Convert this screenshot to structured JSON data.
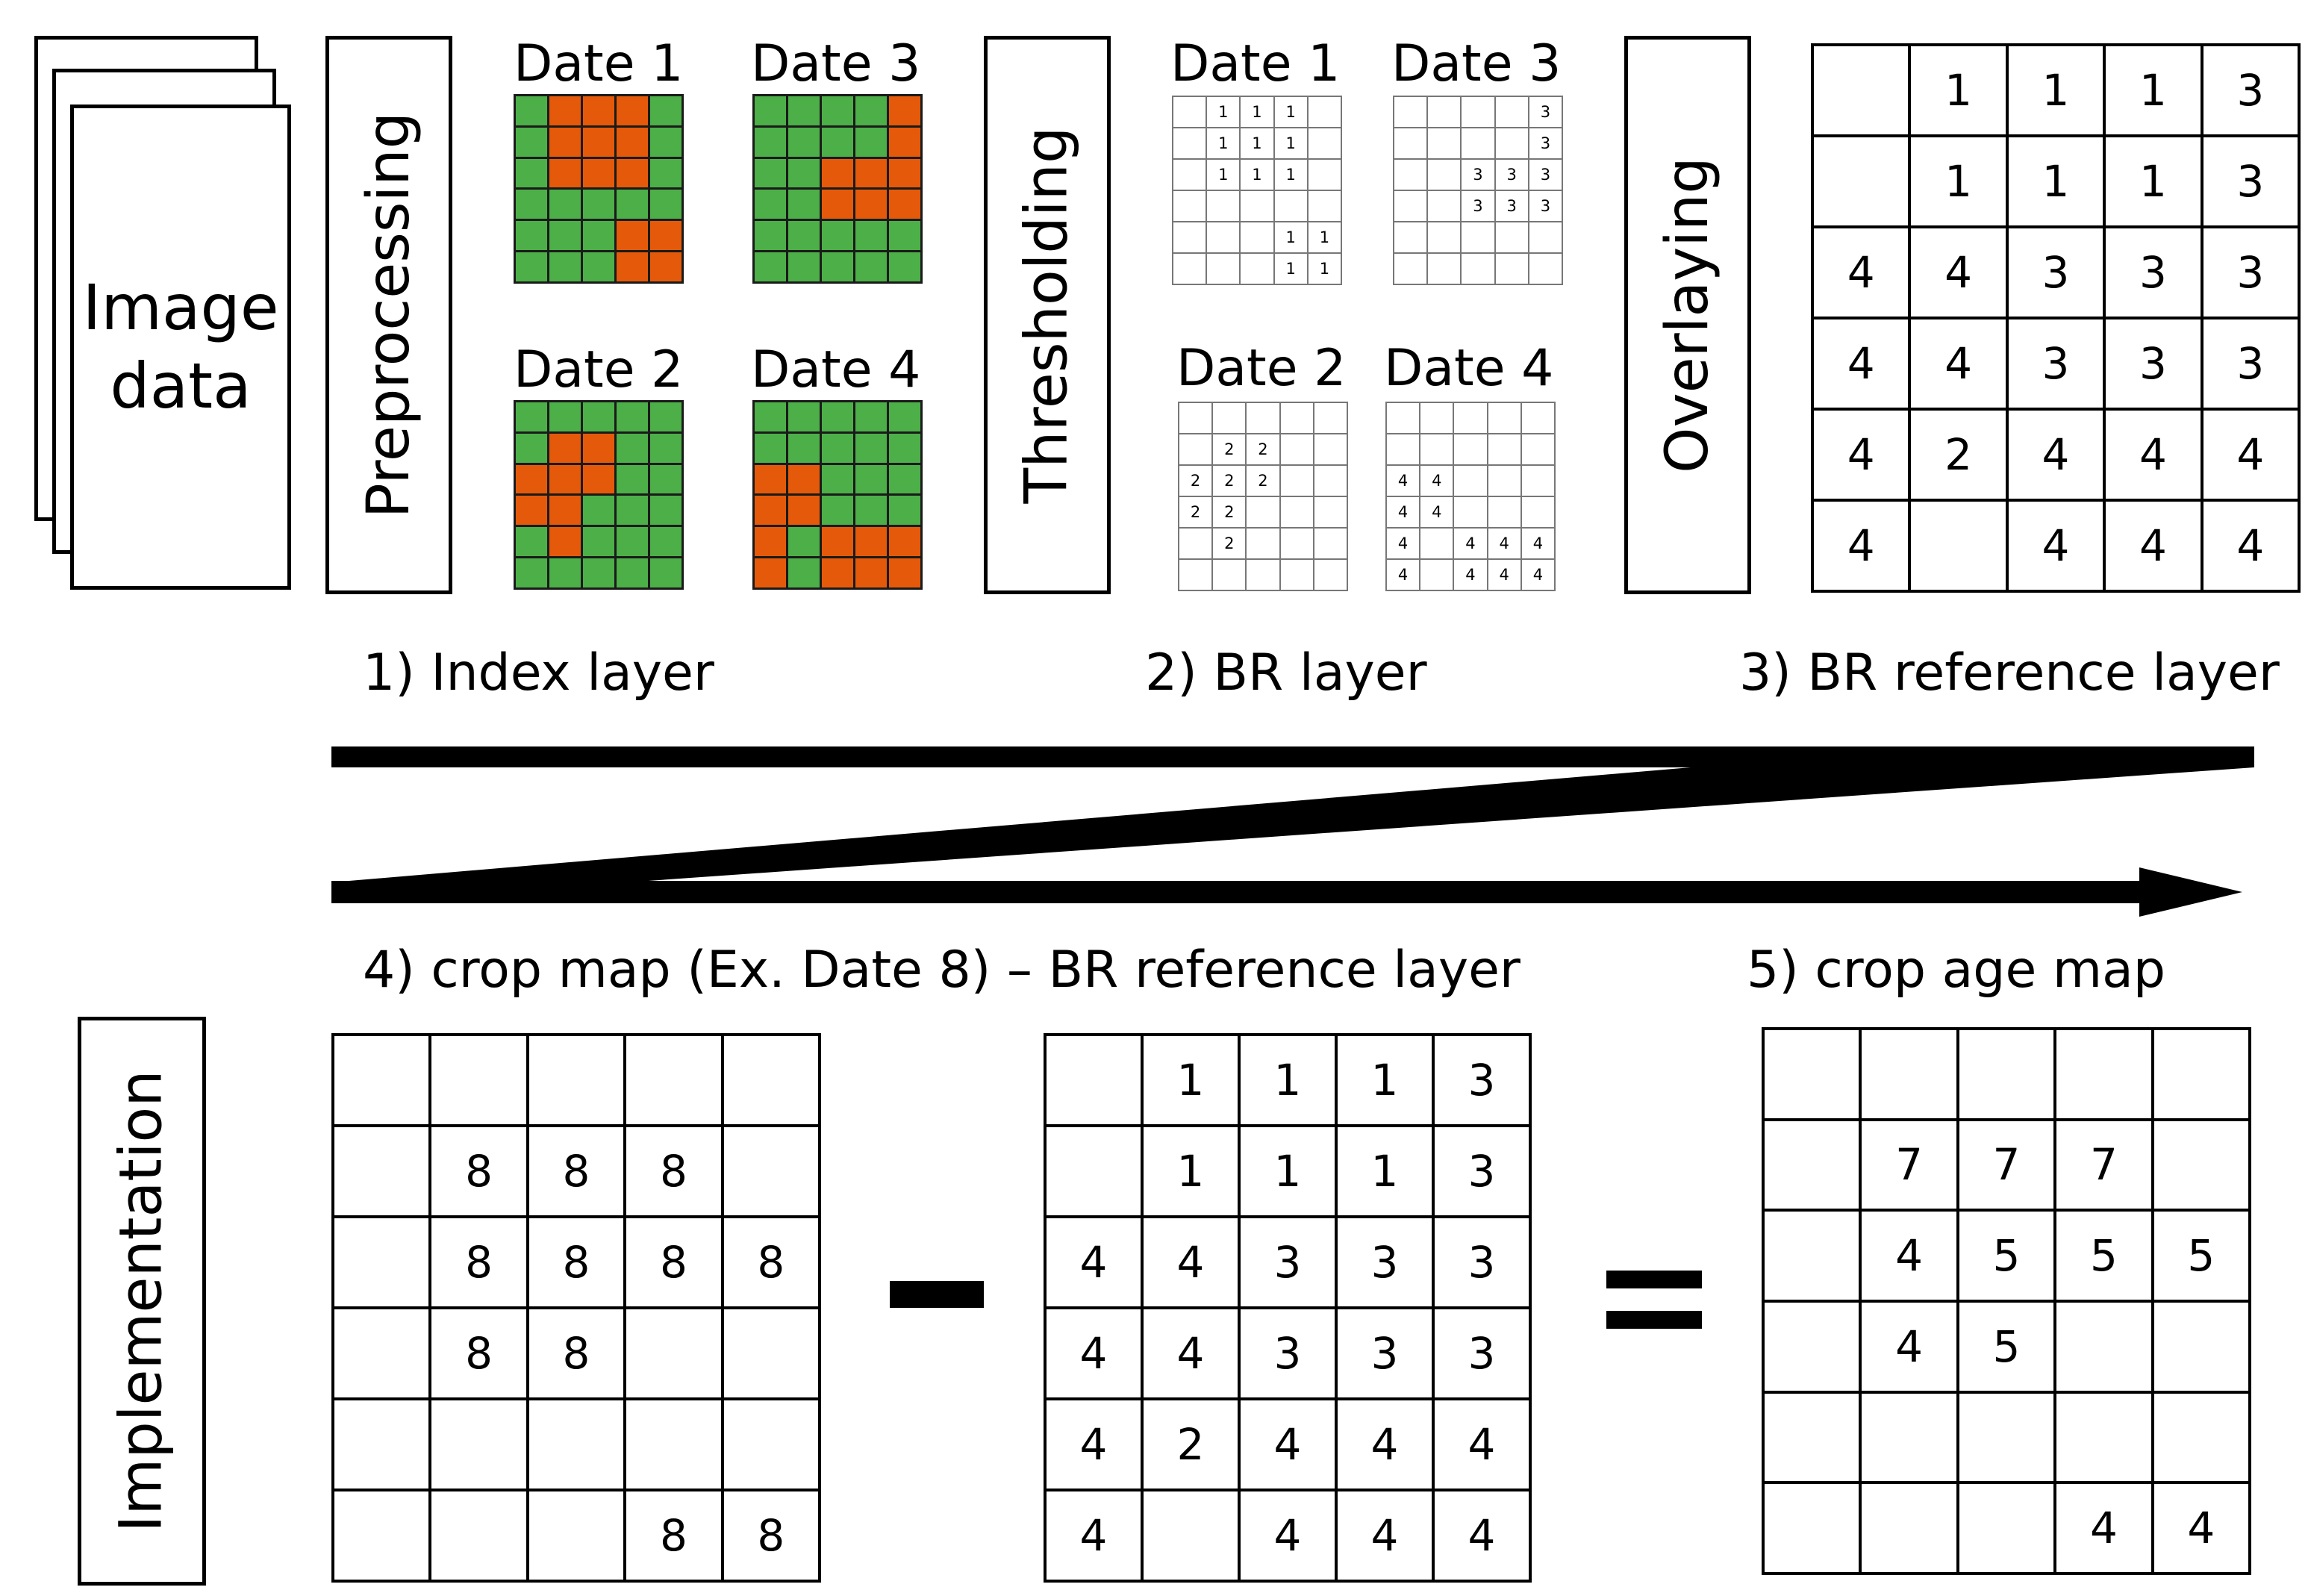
{
  "diagram": {
    "image_data_label": "Image\ndata",
    "steps": {
      "preprocessing": "Preprocessing",
      "thresholding": "Thresholding",
      "overlaying": "Overlaying",
      "implementation": "Implementation"
    },
    "date_labels": [
      "Date 1",
      "Date 2",
      "Date 3",
      "Date 4"
    ],
    "colors": {
      "green": "#4CAF48",
      "orange": "#E55A0A"
    },
    "index_grids": {
      "date1": [
        [
          0,
          1,
          1,
          1,
          0
        ],
        [
          0,
          1,
          1,
          1,
          0
        ],
        [
          0,
          1,
          1,
          1,
          0
        ],
        [
          0,
          0,
          0,
          0,
          0
        ],
        [
          0,
          0,
          0,
          1,
          1
        ],
        [
          0,
          0,
          0,
          1,
          1
        ]
      ],
      "date2": [
        [
          0,
          0,
          0,
          0,
          0
        ],
        [
          0,
          1,
          1,
          0,
          0
        ],
        [
          1,
          1,
          1,
          0,
          0
        ],
        [
          1,
          1,
          0,
          0,
          0
        ],
        [
          0,
          1,
          0,
          0,
          0
        ],
        [
          0,
          0,
          0,
          0,
          0
        ]
      ],
      "date3": [
        [
          0,
          0,
          0,
          0,
          1
        ],
        [
          0,
          0,
          0,
          0,
          1
        ],
        [
          0,
          0,
          1,
          1,
          1
        ],
        [
          0,
          0,
          1,
          1,
          1
        ],
        [
          0,
          0,
          0,
          0,
          0
        ],
        [
          0,
          0,
          0,
          0,
          0
        ]
      ],
      "date4": [
        [
          0,
          0,
          0,
          0,
          0
        ],
        [
          0,
          0,
          0,
          0,
          0
        ],
        [
          1,
          1,
          0,
          0,
          0
        ],
        [
          1,
          1,
          0,
          0,
          0
        ],
        [
          1,
          0,
          1,
          1,
          1
        ],
        [
          1,
          0,
          1,
          1,
          1
        ]
      ]
    },
    "br_grids": {
      "date1": [
        [
          "",
          "1",
          "1",
          "1",
          ""
        ],
        [
          "",
          "1",
          "1",
          "1",
          ""
        ],
        [
          "",
          "1",
          "1",
          "1",
          ""
        ],
        [
          "",
          "",
          "",
          "",
          ""
        ],
        [
          "",
          "",
          "",
          "1",
          "1"
        ],
        [
          "",
          "",
          "",
          "1",
          "1"
        ]
      ],
      "date2": [
        [
          "",
          "",
          "",
          "",
          ""
        ],
        [
          "",
          "2",
          "2",
          "",
          ""
        ],
        [
          "2",
          "2",
          "2",
          "",
          ""
        ],
        [
          "2",
          "2",
          "",
          "",
          ""
        ],
        [
          "",
          "2",
          "",
          "",
          ""
        ],
        [
          "",
          "",
          "",
          "",
          ""
        ]
      ],
      "date3": [
        [
          "",
          "",
          "",
          "",
          "3"
        ],
        [
          "",
          "",
          "",
          "",
          "3"
        ],
        [
          "",
          "",
          "3",
          "3",
          "3"
        ],
        [
          "",
          "",
          "3",
          "3",
          "3"
        ],
        [
          "",
          "",
          "",
          "",
          ""
        ],
        [
          "",
          "",
          "",
          "",
          ""
        ]
      ],
      "date4": [
        [
          "",
          "",
          "",
          "",
          ""
        ],
        [
          "",
          "",
          "",
          "",
          ""
        ],
        [
          "4",
          "4",
          "",
          "",
          ""
        ],
        [
          "4",
          "4",
          "",
          "",
          ""
        ],
        [
          "4",
          "",
          "4",
          "4",
          "4"
        ],
        [
          "4",
          "",
          "4",
          "4",
          "4"
        ]
      ]
    },
    "br_reference_grid": [
      [
        "",
        "1",
        "1",
        "1",
        "3"
      ],
      [
        "",
        "1",
        "1",
        "1",
        "3"
      ],
      [
        "4",
        "4",
        "3",
        "3",
        "3"
      ],
      [
        "4",
        "4",
        "3",
        "3",
        "3"
      ],
      [
        "4",
        "2",
        "4",
        "4",
        "4"
      ],
      [
        "4",
        "",
        "4",
        "4",
        "4"
      ]
    ],
    "crop_map_grid": [
      [
        "",
        "",
        "",
        "",
        ""
      ],
      [
        "",
        "8",
        "8",
        "8",
        ""
      ],
      [
        "",
        "8",
        "8",
        "8",
        "8"
      ],
      [
        "",
        "8",
        "8",
        "",
        ""
      ],
      [
        "",
        "",
        "",
        "",
        ""
      ],
      [
        "",
        "",
        "",
        "8",
        "8"
      ]
    ],
    "crop_age_grid": [
      [
        "",
        "",
        "",
        "",
        ""
      ],
      [
        "",
        "7",
        "7",
        "7",
        ""
      ],
      [
        "",
        "4",
        "5",
        "5",
        "5"
      ],
      [
        "",
        "4",
        "5",
        "",
        ""
      ],
      [
        "",
        "",
        "",
        "",
        ""
      ],
      [
        "",
        "",
        "",
        "4",
        "4"
      ]
    ],
    "stage_labels": {
      "index_layer": "1) Index layer",
      "br_layer": "2) BR layer",
      "br_reference_layer": "3) BR reference layer",
      "crop_map_formula": "4) crop map (Ex. Date 8) – BR reference layer",
      "crop_age_map": "5) crop age map"
    }
  }
}
